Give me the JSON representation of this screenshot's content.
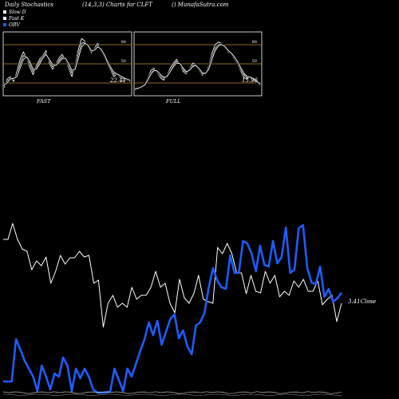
{
  "header": {
    "title": "Daily Stochastics",
    "params": "(14,3,3) Charts for CLFT",
    "source": "() MunafaSutra.com"
  },
  "legend": [
    {
      "label": "Slow  D",
      "color": "#ffffff"
    },
    {
      "label": "Fast K",
      "color": "#ffffff"
    },
    {
      "label": "OBV",
      "color": "#1e5cff"
    }
  ],
  "colors": {
    "background": "#000000",
    "line": "#ffffff",
    "obv": "#1e5cff",
    "guide": "#c08a1e"
  },
  "chart_data": [
    {
      "type": "line",
      "name": "fast-panel",
      "caption": "FAST",
      "last_value_label": "22.41",
      "yticks": [
        "80",
        "50",
        "20"
      ],
      "yguides": [
        80,
        50,
        20
      ],
      "ylim": [
        0,
        100
      ],
      "series": [
        {
          "values": [
            12,
            26,
            30,
            22,
            38,
            58,
            70,
            60,
            45,
            33,
            48,
            58,
            64,
            72,
            52,
            42,
            50,
            60,
            66,
            58,
            44,
            30,
            48,
            74,
            92,
            88,
            78,
            68,
            76,
            84,
            72,
            62,
            50,
            40,
            30,
            34,
            28,
            26,
            24,
            22
          ]
        },
        {
          "values": [
            14,
            22,
            28,
            26,
            32,
            50,
            64,
            62,
            50,
            38,
            44,
            54,
            62,
            68,
            56,
            46,
            48,
            56,
            62,
            60,
            48,
            36,
            44,
            66,
            84,
            86,
            80,
            70,
            74,
            80,
            74,
            64,
            52,
            42,
            34,
            34,
            30,
            27,
            25,
            23
          ]
        },
        {
          "values": [
            16,
            20,
            26,
            27,
            30,
            44,
            58,
            62,
            54,
            42,
            42,
            50,
            60,
            66,
            58,
            50,
            48,
            53,
            59,
            60,
            51,
            40,
            42,
            60,
            78,
            84,
            81,
            72,
            73,
            78,
            75,
            66,
            55,
            45,
            37,
            34,
            31,
            28,
            26,
            24
          ]
        }
      ]
    },
    {
      "type": "line",
      "name": "full-panel",
      "caption": "FULL",
      "last_value_label": "15.96",
      "yticks": [
        "80",
        "50",
        "20"
      ],
      "yguides": [
        80,
        50,
        20
      ],
      "ylim": [
        0,
        100
      ],
      "series": [
        {
          "values": [
            8,
            10,
            12,
            18,
            28,
            40,
            44,
            36,
            28,
            24,
            32,
            44,
            52,
            58,
            50,
            38,
            34,
            42,
            52,
            50,
            40,
            32,
            36,
            48,
            68,
            82,
            86,
            84,
            78,
            70,
            66,
            58,
            50,
            38,
            28,
            26,
            30,
            24,
            20,
            16
          ]
        },
        {
          "values": [
            9,
            10,
            13,
            17,
            26,
            36,
            42,
            38,
            31,
            27,
            30,
            40,
            49,
            55,
            51,
            41,
            36,
            40,
            48,
            49,
            42,
            34,
            35,
            45,
            62,
            76,
            82,
            83,
            78,
            72,
            67,
            60,
            52,
            41,
            32,
            28,
            29,
            25,
            21,
            17
          ]
        },
        {
          "values": [
            10,
            11,
            13,
            16,
            24,
            34,
            40,
            39,
            33,
            29,
            30,
            38,
            46,
            52,
            51,
            44,
            38,
            40,
            46,
            48,
            43,
            36,
            35,
            42,
            58,
            72,
            80,
            82,
            79,
            73,
            68,
            62,
            54,
            44,
            35,
            30,
            29,
            26,
            22,
            18
          ]
        }
      ]
    },
    {
      "type": "line",
      "name": "price-obv-panel",
      "last_value_label": "3.41",
      "last_value_suffix": "Close",
      "series": [
        {
          "values": [
            300,
            300,
            280,
            300,
            312,
            315,
            338,
            327,
            333,
            322,
            355,
            340,
            320,
            331,
            323,
            323,
            315,
            322,
            320,
            355,
            351,
            410,
            380,
            370,
            385,
            380,
            385,
            360,
            375,
            370,
            370,
            360,
            340,
            360,
            355,
            380,
            392,
            350,
            373,
            380,
            368,
            345,
            375,
            378,
            380,
            310,
            318,
            305,
            318,
            342,
            342,
            368,
            345,
            365,
            367,
            340,
            355,
            345,
            372,
            365,
            370,
            352,
            360,
            350,
            365,
            365,
            352,
            382,
            375,
            370,
            403,
            380
          ]
        },
        {
          "values": [
            478,
            478,
            478,
            425,
            438,
            452,
            462,
            472,
            490,
            458,
            472,
            488,
            468,
            472,
            448,
            458,
            490,
            462,
            474,
            462,
            472,
            488,
            492,
            492,
            492,
            490,
            462,
            476,
            490,
            462,
            472,
            456,
            440,
            425,
            404,
            420,
            402,
            432,
            416,
            400,
            394,
            424,
            414,
            434,
            444,
            408,
            404,
            392,
            360,
            336,
            352,
            360,
            362,
            320,
            342,
            342,
            302,
            305,
            318,
            340,
            308,
            332,
            334,
            302,
            330,
            322,
            285,
            342,
            338,
            286,
            282,
            336,
            354,
            356,
            334,
            372,
            362,
            378,
            374,
            367
          ]
        }
      ]
    }
  ]
}
